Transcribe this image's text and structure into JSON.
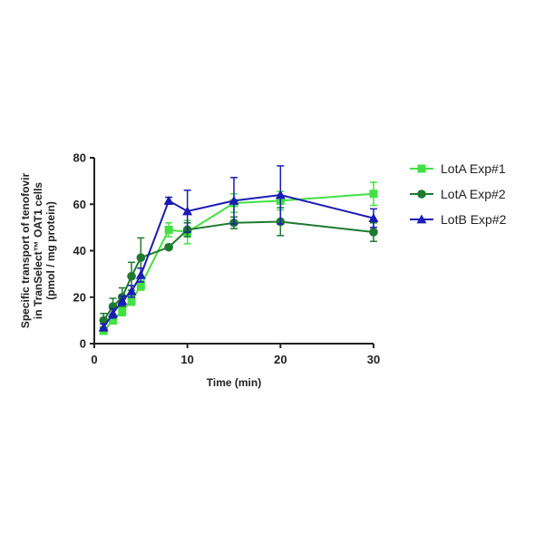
{
  "chart_data": {
    "type": "line",
    "title": "",
    "xlabel": "Time (min)",
    "ylabel_lines": [
      "Specific transport of tenofovir",
      "in TranSelect™ OAT1 cells",
      "(pmol / mg protein)"
    ],
    "xlim": [
      0,
      30
    ],
    "ylim": [
      0,
      80
    ],
    "xticks": [
      0,
      10,
      20,
      30
    ],
    "yticks": [
      0,
      20,
      40,
      60,
      80
    ],
    "grid": false,
    "legend_position": "right",
    "series": [
      {
        "name": "LotA Exp#1",
        "color": "#43e043",
        "marker": "square",
        "x": [
          1,
          2,
          3,
          4,
          5,
          8,
          10,
          15,
          20,
          30
        ],
        "y": [
          5.5,
          10,
          14,
          18.5,
          25,
          49,
          48,
          60.5,
          61.5,
          64.5
        ],
        "err": [
          1.5,
          1.5,
          2,
          2,
          2,
          3,
          5,
          4,
          4,
          5
        ]
      },
      {
        "name": "LotA Exp#2",
        "color": "#1e7a2e",
        "marker": "circle",
        "x": [
          1,
          2,
          3,
          4,
          5,
          8,
          10,
          15,
          20,
          30
        ],
        "y": [
          10,
          16,
          20,
          29,
          37,
          41.5,
          49,
          52,
          52.5,
          48
        ],
        "err": [
          3,
          3.5,
          4,
          6,
          8.5,
          1,
          3,
          2.5,
          6,
          4
        ]
      },
      {
        "name": "LotB Exp#2",
        "color": "#1c1cb4",
        "marker": "triangle",
        "x": [
          1,
          2,
          3,
          4,
          5,
          8,
          10,
          15,
          20,
          30
        ],
        "y": [
          7,
          13,
          18.5,
          22.5,
          29.5,
          61.5,
          57,
          61.5,
          64,
          54
        ],
        "err": [
          1.5,
          2,
          2,
          2.5,
          3,
          1.5,
          9,
          10,
          12.5,
          4
        ]
      }
    ]
  }
}
